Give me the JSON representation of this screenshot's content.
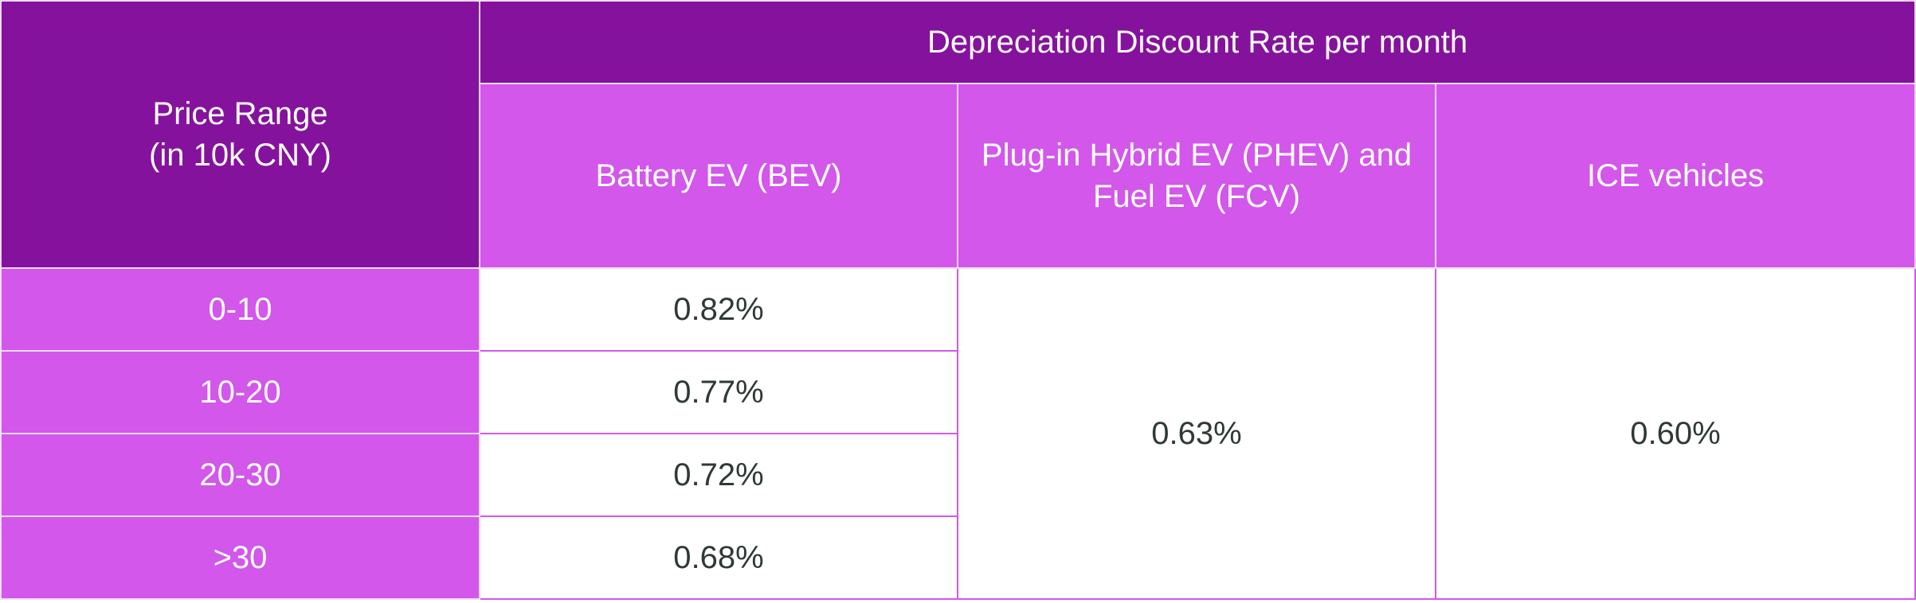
{
  "table": {
    "group_header": "Depreciation Discount Rate per month",
    "row_header": "Price Range\n(in 10k CNY)",
    "columns": [
      "Battery EV (BEV)",
      "Plug-in Hybrid EV (PHEV) and Fuel EV (FCV)",
      "ICE vehicles"
    ],
    "rows": [
      [
        "0-10",
        "0.82%"
      ],
      [
        "10-20",
        "0.77%"
      ],
      [
        "20-30",
        "0.72%"
      ],
      [
        ">30",
        "0.68%"
      ]
    ],
    "merged": [
      "0.63%",
      "0.60%"
    ]
  }
}
